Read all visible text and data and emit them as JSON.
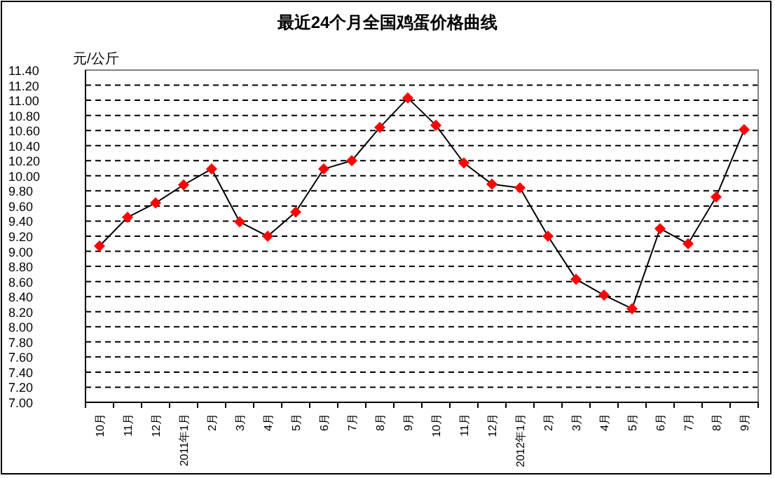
{
  "chart_data": {
    "type": "line",
    "title": "最近24个月全国鸡蛋价格曲线",
    "ylabel": "元/公斤",
    "categories": [
      "10月",
      "11月",
      "12月",
      "2011年1月",
      "2月",
      "3月",
      "4月",
      "5月",
      "6月",
      "7月",
      "8月",
      "9月",
      "10月",
      "11月",
      "12月",
      "2012年1月",
      "2月",
      "3月",
      "4月",
      "5月",
      "6月",
      "7月",
      "8月",
      "9月"
    ],
    "series": [
      {
        "color": "#ff0000",
        "values": [
          9.07,
          9.45,
          9.64,
          9.88,
          10.09,
          9.39,
          9.2,
          9.52,
          10.09,
          10.2,
          10.64,
          11.03,
          10.67,
          10.17,
          9.89,
          9.84,
          9.2,
          8.63,
          8.42,
          8.24,
          9.3,
          9.1,
          9.72,
          10.61
        ]
      }
    ],
    "ylim": [
      7.0,
      11.4
    ],
    "yticks": [
      {
        "value": 7.0,
        "label": "7.00"
      },
      {
        "value": 7.2,
        "label": "7.20"
      },
      {
        "value": 7.4,
        "label": "7.40"
      },
      {
        "value": 7.6,
        "label": "7.60"
      },
      {
        "value": 7.8,
        "label": "7.80"
      },
      {
        "value": 8.0,
        "label": "8.00"
      },
      {
        "value": 8.2,
        "label": "8.20"
      },
      {
        "value": 8.4,
        "label": "8.40"
      },
      {
        "value": 8.6,
        "label": "8.60"
      },
      {
        "value": 8.8,
        "label": "8.80"
      },
      {
        "value": 9.0,
        "label": "9.00"
      },
      {
        "value": 9.2,
        "label": "9.20"
      },
      {
        "value": 9.4,
        "label": "9.40"
      },
      {
        "value": 9.6,
        "label": "9.60"
      },
      {
        "value": 9.8,
        "label": "9.80"
      },
      {
        "value": 10.0,
        "label": "10.00"
      },
      {
        "value": 10.2,
        "label": "10.20"
      },
      {
        "value": 10.4,
        "label": "10.40"
      },
      {
        "value": 10.6,
        "label": "10.60"
      },
      {
        "value": 10.8,
        "label": "10.80"
      },
      {
        "value": 11.0,
        "label": "11.00"
      },
      {
        "value": 11.2,
        "label": "11.20"
      },
      {
        "value": 11.4,
        "label": "11.40"
      }
    ],
    "grid": "y",
    "marker": "diamond",
    "line_style": "solid"
  }
}
